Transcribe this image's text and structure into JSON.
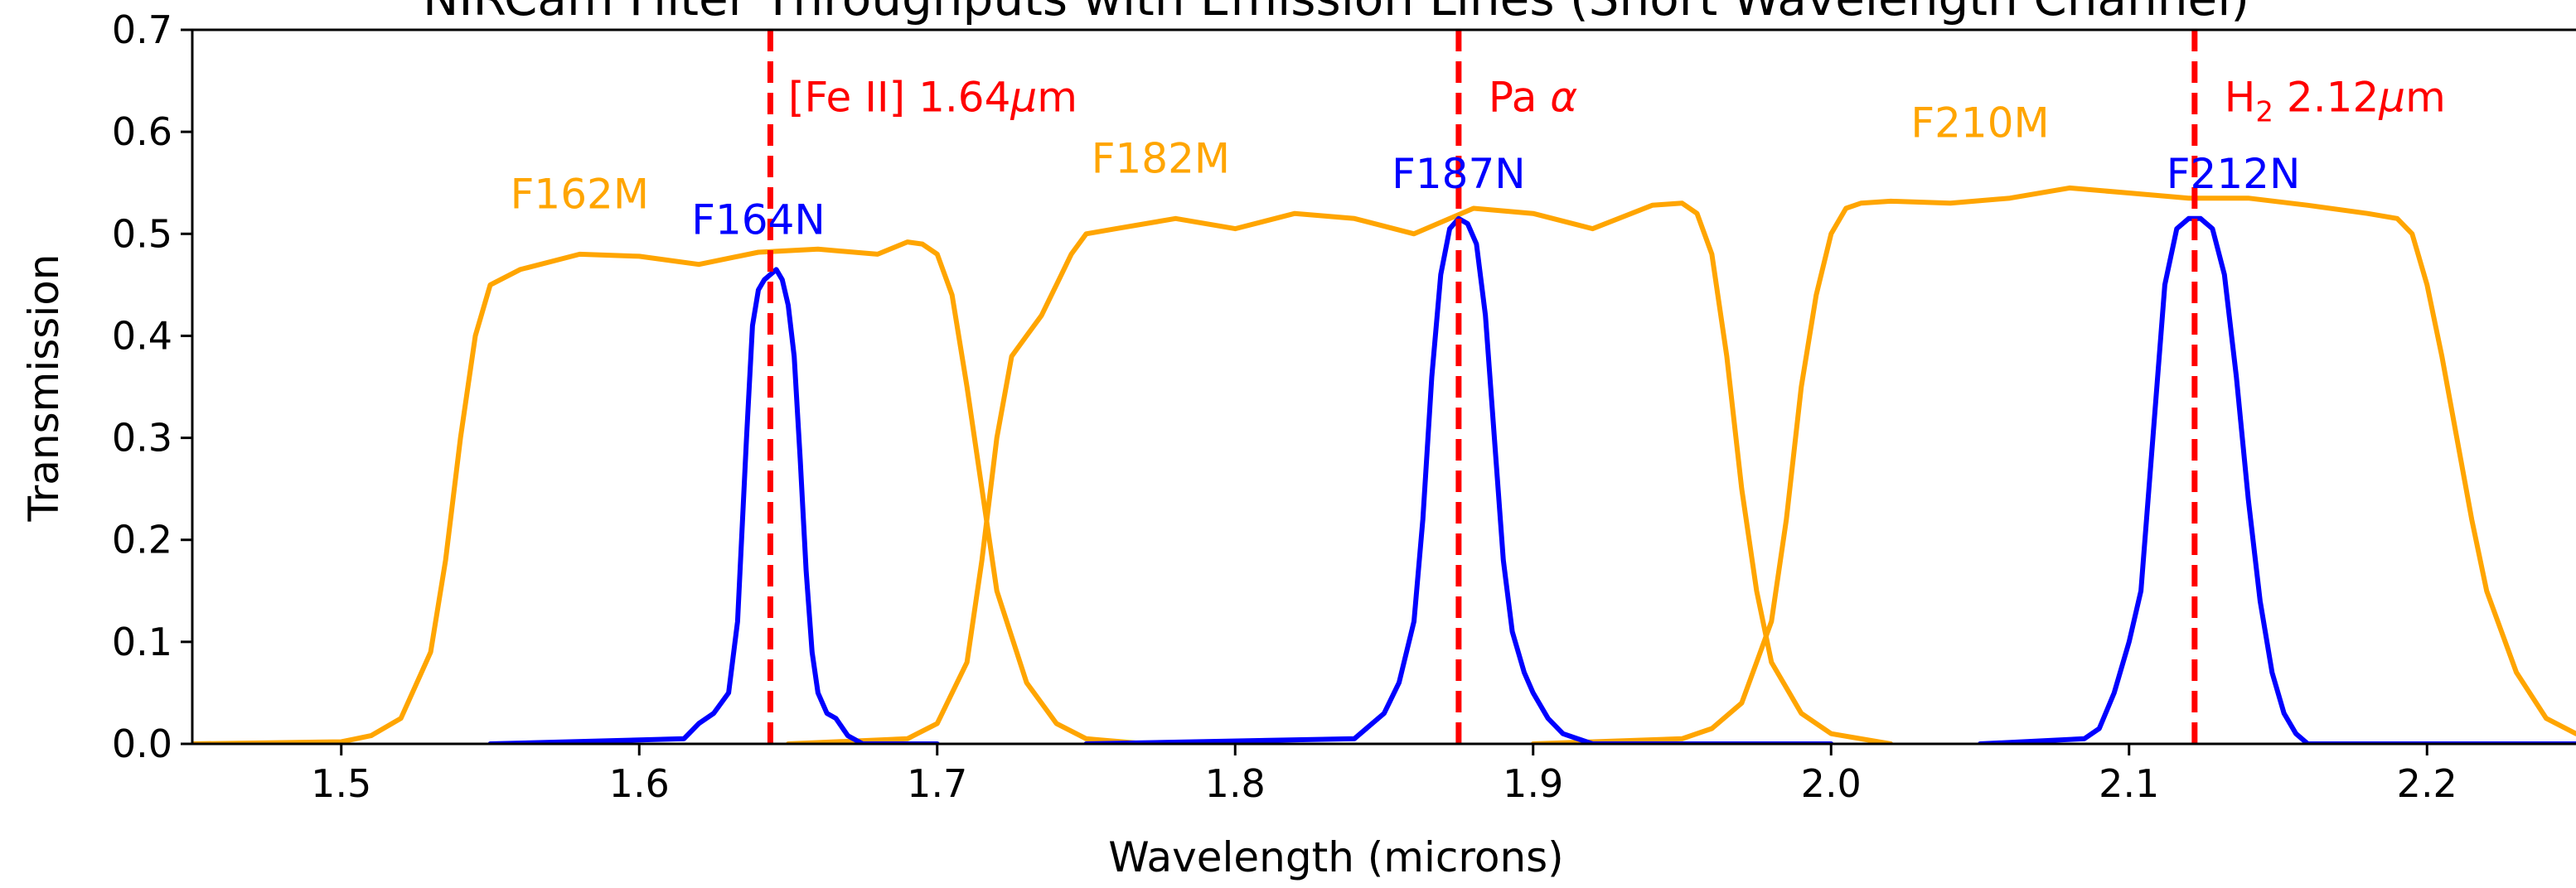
{
  "chart_data": {
    "type": "line",
    "title": "NIRCam Filter Throughputs with Emission Lines (Short Wavelength Channel)",
    "xlabel": "Wavelength (microns)",
    "ylabel": "Transmission",
    "xlim": [
      1.45,
      2.25
    ],
    "ylim": [
      0.0,
      0.7
    ],
    "x_ticks": [
      1.5,
      1.6,
      1.7,
      1.8,
      1.9,
      2.0,
      2.1,
      2.2
    ],
    "y_ticks": [
      0.0,
      0.1,
      0.2,
      0.3,
      0.4,
      0.5,
      0.6,
      0.7
    ],
    "grid": false,
    "colors": {
      "medium": "#ffa500",
      "narrow": "#0000ff",
      "lines": "#ff0000"
    },
    "series": [
      {
        "name": "F162M",
        "color": "#ffa500",
        "width_class": "medium",
        "label_pos": [
          1.58,
          0.525
        ],
        "x": [
          1.45,
          1.5,
          1.51,
          1.52,
          1.53,
          1.535,
          1.54,
          1.545,
          1.55,
          1.56,
          1.58,
          1.6,
          1.62,
          1.64,
          1.66,
          1.68,
          1.69,
          1.695,
          1.7,
          1.705,
          1.71,
          1.715,
          1.72,
          1.73,
          1.74,
          1.75,
          1.77
        ],
        "y": [
          0.0,
          0.002,
          0.008,
          0.025,
          0.09,
          0.18,
          0.3,
          0.4,
          0.45,
          0.465,
          0.48,
          0.478,
          0.47,
          0.482,
          0.485,
          0.48,
          0.492,
          0.49,
          0.48,
          0.44,
          0.35,
          0.25,
          0.15,
          0.06,
          0.02,
          0.005,
          0.0
        ]
      },
      {
        "name": "F182M",
        "color": "#ffa500",
        "width_class": "medium",
        "label_pos": [
          1.775,
          0.56
        ],
        "x": [
          1.65,
          1.69,
          1.7,
          1.71,
          1.715,
          1.72,
          1.725,
          1.73,
          1.735,
          1.74,
          1.745,
          1.75,
          1.76,
          1.78,
          1.8,
          1.82,
          1.84,
          1.86,
          1.88,
          1.9,
          1.92,
          1.94,
          1.95,
          1.955,
          1.96,
          1.965,
          1.97,
          1.975,
          1.98,
          1.99,
          2.0,
          2.02
        ],
        "y": [
          0.0,
          0.005,
          0.02,
          0.08,
          0.18,
          0.3,
          0.38,
          0.4,
          0.42,
          0.45,
          0.48,
          0.5,
          0.505,
          0.515,
          0.505,
          0.52,
          0.515,
          0.5,
          0.525,
          0.52,
          0.505,
          0.528,
          0.53,
          0.52,
          0.48,
          0.38,
          0.25,
          0.15,
          0.08,
          0.03,
          0.01,
          0.0
        ]
      },
      {
        "name": "F210M",
        "color": "#ffa500",
        "width_class": "medium",
        "label_pos": [
          2.05,
          0.595
        ],
        "x": [
          1.9,
          1.95,
          1.96,
          1.97,
          1.975,
          1.98,
          1.985,
          1.99,
          1.995,
          2.0,
          2.005,
          2.01,
          2.02,
          2.04,
          2.06,
          2.08,
          2.1,
          2.12,
          2.14,
          2.16,
          2.18,
          2.19,
          2.195,
          2.2,
          2.205,
          2.21,
          2.215,
          2.22,
          2.23,
          2.24,
          2.25
        ],
        "y": [
          0.0,
          0.005,
          0.015,
          0.04,
          0.08,
          0.12,
          0.22,
          0.35,
          0.44,
          0.5,
          0.525,
          0.53,
          0.532,
          0.53,
          0.535,
          0.545,
          0.54,
          0.535,
          0.535,
          0.528,
          0.52,
          0.515,
          0.5,
          0.45,
          0.38,
          0.3,
          0.22,
          0.15,
          0.07,
          0.025,
          0.01
        ]
      },
      {
        "name": "F164N",
        "color": "#0000ff",
        "width_class": "narrow",
        "label_pos": [
          1.64,
          0.5
        ],
        "x": [
          1.55,
          1.615,
          1.62,
          1.625,
          1.63,
          1.633,
          1.636,
          1.638,
          1.64,
          1.642,
          1.644,
          1.646,
          1.648,
          1.65,
          1.652,
          1.654,
          1.656,
          1.658,
          1.66,
          1.663,
          1.666,
          1.67,
          1.675,
          1.7
        ],
        "y": [
          0.0,
          0.005,
          0.02,
          0.03,
          0.05,
          0.12,
          0.3,
          0.41,
          0.445,
          0.455,
          0.46,
          0.465,
          0.455,
          0.43,
          0.38,
          0.28,
          0.17,
          0.09,
          0.05,
          0.03,
          0.025,
          0.008,
          0.0,
          0.0
        ]
      },
      {
        "name": "F187N",
        "color": "#0000ff",
        "width_class": "narrow",
        "label_pos": [
          1.875,
          0.545
        ],
        "x": [
          1.75,
          1.84,
          1.85,
          1.855,
          1.86,
          1.863,
          1.866,
          1.869,
          1.872,
          1.875,
          1.878,
          1.881,
          1.884,
          1.887,
          1.89,
          1.893,
          1.897,
          1.9,
          1.905,
          1.91,
          1.92,
          2.0
        ],
        "y": [
          0.0,
          0.005,
          0.03,
          0.06,
          0.12,
          0.22,
          0.36,
          0.46,
          0.505,
          0.515,
          0.51,
          0.49,
          0.42,
          0.3,
          0.18,
          0.11,
          0.07,
          0.05,
          0.025,
          0.01,
          0.0,
          0.0
        ]
      },
      {
        "name": "F212N",
        "color": "#0000ff",
        "width_class": "narrow",
        "label_pos": [
          2.135,
          0.545
        ],
        "x": [
          2.05,
          2.085,
          2.09,
          2.095,
          2.1,
          2.104,
          2.108,
          2.112,
          2.116,
          2.12,
          2.124,
          2.128,
          2.132,
          2.136,
          2.14,
          2.144,
          2.148,
          2.152,
          2.156,
          2.16,
          2.25
        ],
        "y": [
          0.0,
          0.005,
          0.015,
          0.05,
          0.1,
          0.15,
          0.3,
          0.45,
          0.505,
          0.515,
          0.515,
          0.505,
          0.46,
          0.36,
          0.24,
          0.14,
          0.07,
          0.03,
          0.01,
          0.0,
          0.0
        ]
      }
    ],
    "vlines": [
      {
        "x": 1.644,
        "label_pre": "[Fe II] 1.64",
        "label_mu": "μ",
        "label_post": "m",
        "label_pos": [
          1.65,
          0.62
        ]
      },
      {
        "x": 1.875,
        "label_pre": "Pa ",
        "label_mu": "α",
        "label_post": "",
        "label_pos": [
          1.885,
          0.62
        ]
      },
      {
        "x": 2.122,
        "label_pre": "H",
        "label_sub": "2",
        "label_post2": " 2.12",
        "label_mu": "μ",
        "label_post": "m",
        "label_pos": [
          2.132,
          0.62
        ]
      }
    ]
  }
}
